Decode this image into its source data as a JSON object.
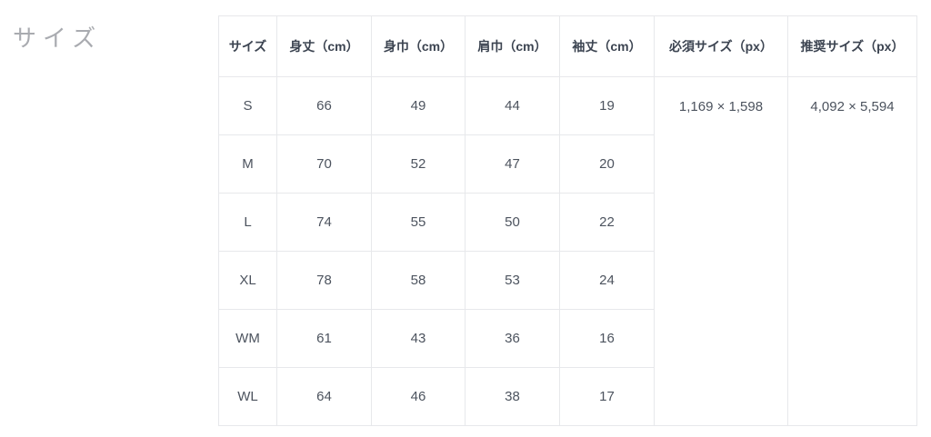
{
  "section": {
    "title": "サイズ"
  },
  "table": {
    "headers": {
      "size": "サイズ",
      "body_length": "身丈（cm）",
      "body_width": "身巾（cm）",
      "shoulder_width": "肩巾（cm）",
      "sleeve_length": "袖丈（cm）",
      "required_size": "必須サイズ（px）",
      "recommended_size": "推奨サイズ（px）"
    },
    "rows": [
      {
        "size": "S",
        "body_length": "66",
        "body_width": "49",
        "shoulder_width": "44",
        "sleeve_length": "19"
      },
      {
        "size": "M",
        "body_length": "70",
        "body_width": "52",
        "shoulder_width": "47",
        "sleeve_length": "20"
      },
      {
        "size": "L",
        "body_length": "74",
        "body_width": "55",
        "shoulder_width": "50",
        "sleeve_length": "22"
      },
      {
        "size": "XL",
        "body_length": "78",
        "body_width": "58",
        "shoulder_width": "53",
        "sleeve_length": "24"
      },
      {
        "size": "WM",
        "body_length": "61",
        "body_width": "43",
        "shoulder_width": "36",
        "sleeve_length": "16"
      },
      {
        "size": "WL",
        "body_length": "64",
        "body_width": "46",
        "shoulder_width": "38",
        "sleeve_length": "17"
      }
    ],
    "required_size_px": "1,169 × 1,598",
    "recommended_size_px": "4,092 × 5,594"
  },
  "colors": {
    "border": "#e7e8eb",
    "header_text": "#3c4451",
    "cell_text": "#4c535e",
    "section_title_text": "#a9abb0",
    "background": "#ffffff"
  }
}
